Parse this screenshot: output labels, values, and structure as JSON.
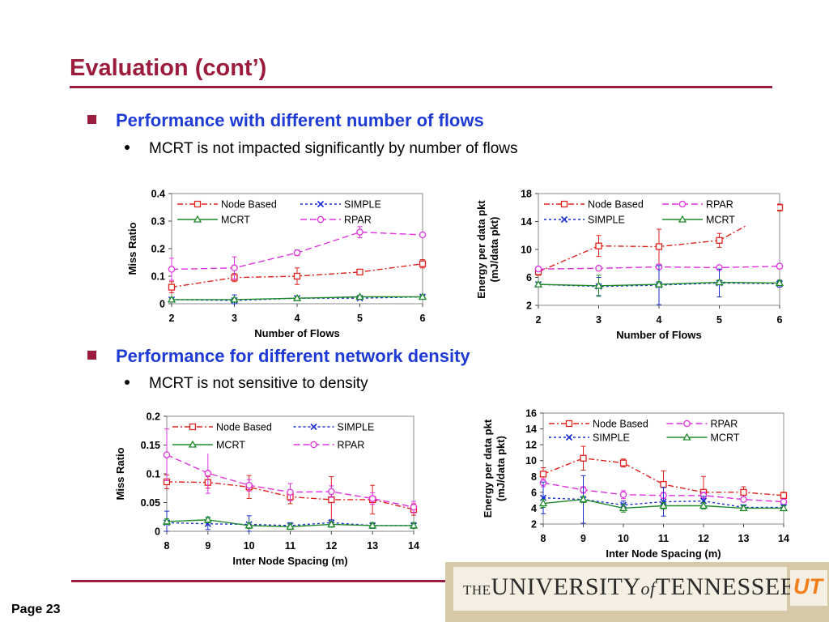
{
  "slide": {
    "title": "Evaluation (cont’)",
    "bullet1": "Performance with different number of flows",
    "bullet1_sub": "MCRT is not impacted significantly by number of flows",
    "bullet2": "Performance for different network density",
    "bullet2_sub": "MCRT is not sensitive to density",
    "page": "Page 23",
    "logo": {
      "the": "THE",
      "university": "UNIVERSITY",
      "of": "of",
      "state": "TENNESSEE",
      "mark": "UT"
    }
  },
  "colors": {
    "title": "#9b1c3c",
    "bullet": "#1f3bd6",
    "node_based": "#e0201c",
    "simple": "#1a2fd0",
    "mcrt": "#1f8a2a",
    "rpar": "#e030e0"
  },
  "chart_data": [
    {
      "type": "line",
      "xlabel": "Number of Flows",
      "ylabel": "Miss Ratio",
      "x": [
        2,
        3,
        4,
        5,
        6
      ],
      "xticks": [
        "2",
        "3",
        "4",
        "5",
        "6"
      ],
      "ylim": [
        0,
        0.4
      ],
      "yticks": [
        0,
        0.1,
        0.2,
        0.3,
        0.4
      ],
      "ytick_labels": [
        "0",
        "0.1",
        "0.2",
        "0.3",
        "0.4"
      ],
      "legend_cols": 2,
      "legend_order": [
        "Node Based",
        "SIMPLE",
        "MCRT",
        "RPAR"
      ],
      "series": [
        {
          "name": "Node Based",
          "values": [
            0.06,
            0.095,
            0.1,
            0.115,
            0.145
          ],
          "err": [
            0.02,
            0.015,
            0.03,
            0.005,
            0.015
          ],
          "color": "#e0201c",
          "dash": "7,3,2,3",
          "marker": "square"
        },
        {
          "name": "SIMPLE",
          "values": [
            0.015,
            0.012,
            0.02,
            0.02,
            0.025
          ],
          "err": [
            0.005,
            0.02,
            0.005,
            0.005,
            0.005
          ],
          "color": "#1a2fd0",
          "dash": "3,3",
          "marker": "x"
        },
        {
          "name": "MCRT",
          "values": [
            0.015,
            0.015,
            0.02,
            0.025,
            0.025
          ],
          "err": [
            0.005,
            0.005,
            0.005,
            0.005,
            0.005
          ],
          "color": "#1f8a2a",
          "dash": "",
          "marker": "triangle"
        },
        {
          "name": "RPAR",
          "values": [
            0.125,
            0.13,
            0.185,
            0.26,
            0.25
          ],
          "err": [
            0.04,
            0.04,
            0.01,
            0.02,
            0.005
          ],
          "color": "#e030e0",
          "dash": "8,4",
          "marker": "circle"
        }
      ]
    },
    {
      "type": "line",
      "xlabel": "Number of Flows",
      "ylabel": "Energy per data pkt\n(mJ/data pkt)",
      "x": [
        2,
        3,
        4,
        5,
        6
      ],
      "xticks": [
        "2",
        "3",
        "4",
        "5",
        "6"
      ],
      "ylim": [
        2,
        18
      ],
      "yticks": [
        2,
        6,
        10,
        14,
        18
      ],
      "ytick_labels": [
        "2",
        "6",
        "10",
        "14",
        "18"
      ],
      "legend_cols": 2,
      "legend_order": [
        "Node Based",
        "RPAR",
        "SIMPLE",
        "MCRT"
      ],
      "series": [
        {
          "name": "Node Based",
          "values": [
            6.8,
            10.5,
            10.4,
            11.3,
            16.0
          ],
          "err": [
            0.5,
            1.5,
            2.5,
            1.0,
            0.5
          ],
          "color": "#e0201c",
          "dash": "7,3,2,3",
          "marker": "square"
        },
        {
          "name": "RPAR",
          "values": [
            7.2,
            7.3,
            7.5,
            7.4,
            7.6
          ],
          "err": [
            0.3,
            0.3,
            0.3,
            0.3,
            0.3
          ],
          "color": "#e030e0",
          "dash": "8,4",
          "marker": "circle"
        },
        {
          "name": "SIMPLE",
          "values": [
            5.0,
            4.7,
            4.9,
            5.2,
            5.1
          ],
          "err": [
            0.3,
            1.3,
            2.8,
            2.0,
            0.5
          ],
          "color": "#1a2fd0",
          "dash": "3,3",
          "marker": "x"
        },
        {
          "name": "MCRT",
          "values": [
            5.0,
            4.8,
            5.0,
            5.3,
            5.2
          ],
          "err": [
            0.3,
            1.5,
            0.4,
            0.3,
            0.3
          ],
          "color": "#1f8a2a",
          "dash": "",
          "marker": "triangle"
        }
      ]
    },
    {
      "type": "line",
      "xlabel": "Inter Node Spacing (m)",
      "ylabel": "Miss Ratio",
      "x": [
        8,
        9,
        10,
        11,
        12,
        13,
        14
      ],
      "xticks": [
        "8",
        "9",
        "10",
        "11",
        "12",
        "13",
        "14"
      ],
      "ylim": [
        0,
        0.2
      ],
      "yticks": [
        0,
        0.05,
        0.1,
        0.15,
        0.2
      ],
      "ytick_labels": [
        "0",
        "0.05",
        "0.1",
        "0.15",
        "0.2"
      ],
      "legend_cols": 2,
      "legend_order": [
        "Node Based",
        "SIMPLE",
        "MCRT",
        "RPAR"
      ],
      "series": [
        {
          "name": "Node Based",
          "values": [
            0.086,
            0.085,
            0.077,
            0.06,
            0.055,
            0.055,
            0.038
          ],
          "err": [
            0.012,
            0.01,
            0.02,
            0.012,
            0.04,
            0.025,
            0.01
          ],
          "color": "#e0201c",
          "dash": "7,3,2,3",
          "marker": "square"
        },
        {
          "name": "SIMPLE",
          "values": [
            0.015,
            0.013,
            0.012,
            0.01,
            0.015,
            0.01,
            0.01
          ],
          "err": [
            0.02,
            0.01,
            0.015,
            0.005,
            0.005,
            0.005,
            0.005
          ],
          "color": "#1a2fd0",
          "dash": "3,3",
          "marker": "x"
        },
        {
          "name": "MCRT",
          "values": [
            0.017,
            0.02,
            0.01,
            0.008,
            0.012,
            0.01,
            0.01
          ],
          "err": [
            0.005,
            0.005,
            0.005,
            0.005,
            0.005,
            0.005,
            0.005
          ],
          "color": "#1f8a2a",
          "dash": "",
          "marker": "triangle"
        },
        {
          "name": "RPAR",
          "values": [
            0.133,
            0.101,
            0.08,
            0.068,
            0.069,
            0.057,
            0.042
          ],
          "err": [
            0.045,
            0.035,
            0.01,
            0.015,
            0.01,
            0.01,
            0.01
          ],
          "color": "#e030e0",
          "dash": "8,4",
          "marker": "circle"
        }
      ]
    },
    {
      "type": "line",
      "xlabel": "Inter Node Spacing (m)",
      "ylabel": "Energy per data pkt\n(mJ/data pkt)",
      "x": [
        8,
        9,
        10,
        11,
        12,
        13,
        14
      ],
      "xticks": [
        "8",
        "9",
        "10",
        "11",
        "12",
        "13",
        "14"
      ],
      "ylim": [
        2,
        16
      ],
      "yticks": [
        2,
        4,
        6,
        8,
        10,
        12,
        14,
        16
      ],
      "ytick_labels": [
        "2",
        "4",
        "6",
        "8",
        "10",
        "12",
        "14",
        "16"
      ],
      "legend_cols": 2,
      "legend_order": [
        "Node Based",
        "RPAR",
        "SIMPLE",
        "MCRT"
      ],
      "series": [
        {
          "name": "Node Based",
          "values": [
            8.3,
            10.3,
            9.7,
            7.0,
            6.0,
            6.0,
            5.6
          ],
          "err": [
            0.8,
            1.5,
            0.5,
            1.7,
            2.0,
            0.7,
            0.4
          ],
          "color": "#e0201c",
          "dash": "7,3,2,3",
          "marker": "square"
        },
        {
          "name": "RPAR",
          "values": [
            7.2,
            6.3,
            5.7,
            5.6,
            5.6,
            5.1,
            4.8
          ],
          "err": [
            0.5,
            0.4,
            0.5,
            0.4,
            0.4,
            0.3,
            0.3
          ],
          "color": "#e030e0",
          "dash": "8,4",
          "marker": "circle"
        },
        {
          "name": "SIMPLE",
          "values": [
            5.3,
            5.1,
            4.4,
            4.8,
            4.9,
            4.1,
            4.1
          ],
          "err": [
            2.0,
            3.0,
            0.5,
            1.8,
            0.6,
            0.3,
            0.3
          ],
          "color": "#1a2fd0",
          "dash": "3,3",
          "marker": "x"
        },
        {
          "name": "MCRT",
          "values": [
            4.6,
            5.1,
            4.0,
            4.3,
            4.3,
            4.0,
            4.0
          ],
          "err": [
            0.5,
            0.4,
            0.5,
            0.4,
            0.4,
            0.3,
            0.3
          ],
          "color": "#1f8a2a",
          "dash": "",
          "marker": "triangle"
        }
      ]
    }
  ]
}
